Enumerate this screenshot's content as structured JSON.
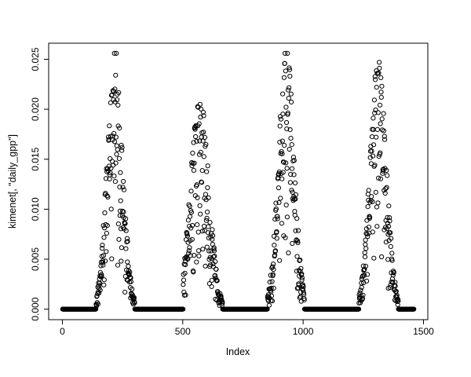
{
  "chart_data": {
    "type": "scatter",
    "title": "",
    "xlabel": "Index",
    "ylabel": "kimenet[, \"daily_gpp\"]",
    "marker": "open-circle",
    "point_color": "#000000",
    "background": "#ffffff",
    "grid": false,
    "legend": false,
    "x_ticks": [
      0,
      500,
      1000,
      1500
    ],
    "y_ticks": [
      0,
      0.005,
      0.01,
      0.015,
      0.02,
      0.025
    ],
    "y_tick_labels": [
      "0.000",
      "0.005",
      "0.010",
      "0.015",
      "0.020",
      "0.025"
    ],
    "xlim": [
      -57,
      1518
    ],
    "ylim": [
      -0.00105,
      0.02661
    ],
    "n_points": 1460,
    "baseline_value": 0,
    "description": "Daily GPP series vs index: long runs of exact zeros (dormant seasons) interrupted by four noisy bell-shaped growing-season peaks.",
    "seasons": [
      {
        "start": 140,
        "peak": 218,
        "end": 300,
        "max": 0.0256,
        "sigma": 32
      },
      {
        "start": 502,
        "peak": 570,
        "end": 665,
        "max": 0.0205,
        "sigma": 38
      },
      {
        "start": 852,
        "peak": 930,
        "end": 1005,
        "max": 0.0256,
        "sigma": 32
      },
      {
        "start": 1232,
        "peak": 1312,
        "end": 1395,
        "max": 0.0247,
        "sigma": 33
      }
    ]
  }
}
